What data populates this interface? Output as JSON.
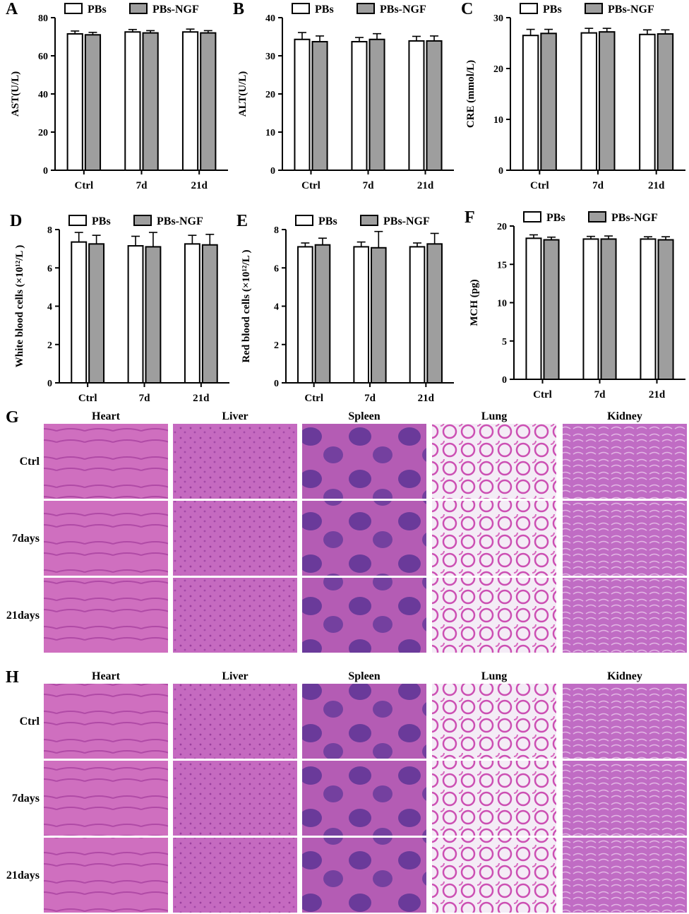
{
  "legend": {
    "series1": "PBs",
    "series2": "PBs-NGF"
  },
  "colors": {
    "series1_fill": "#ffffff",
    "series2_fill": "#9e9e9e",
    "stroke": "#000000"
  },
  "chart_data": [
    {
      "panel": "A",
      "type": "bar",
      "categories": [
        "Ctrl",
        "7d",
        "21d"
      ],
      "ylabel": "AST(U/L)",
      "ylim": [
        0,
        80
      ],
      "yticks": [
        0,
        20,
        40,
        60,
        80
      ],
      "series": [
        {
          "name": "PBs",
          "values": [
            71.5,
            72.5,
            72.5
          ],
          "errors": [
            1.5,
            1.3,
            1.5
          ]
        },
        {
          "name": "PBs-NGF",
          "values": [
            71.0,
            72.0,
            72.0
          ],
          "errors": [
            1.3,
            1.2,
            1.2
          ]
        }
      ]
    },
    {
      "panel": "B",
      "type": "bar",
      "categories": [
        "Ctrl",
        "7d",
        "21d"
      ],
      "ylabel": "ALT(U/L)",
      "ylim": [
        0,
        40
      ],
      "yticks": [
        0,
        10,
        20,
        30,
        40
      ],
      "series": [
        {
          "name": "PBs",
          "values": [
            34.3,
            33.7,
            33.9
          ],
          "errors": [
            1.8,
            1.1,
            1.2
          ]
        },
        {
          "name": "PBs-NGF",
          "values": [
            33.7,
            34.3,
            33.9
          ],
          "errors": [
            1.5,
            1.5,
            1.3
          ]
        }
      ]
    },
    {
      "panel": "C",
      "type": "bar",
      "categories": [
        "Ctrl",
        "7d",
        "21d"
      ],
      "ylabel": "CRE (mmol/L)",
      "ylim": [
        0,
        30
      ],
      "yticks": [
        0,
        10,
        20,
        30
      ],
      "series": [
        {
          "name": "PBs",
          "values": [
            26.5,
            27.0,
            26.7
          ],
          "errors": [
            1.2,
            0.9,
            0.9
          ]
        },
        {
          "name": "PBs-NGF",
          "values": [
            26.9,
            27.2,
            26.8
          ],
          "errors": [
            0.8,
            0.7,
            0.8
          ]
        }
      ]
    },
    {
      "panel": "D",
      "type": "bar",
      "categories": [
        "Ctrl",
        "7d",
        "21d"
      ],
      "ylabel": "White blood cells (×10¹²/L )",
      "ylim": [
        0,
        8
      ],
      "yticks": [
        0,
        2,
        4,
        6,
        8
      ],
      "series": [
        {
          "name": "PBs",
          "values": [
            7.35,
            7.15,
            7.25
          ],
          "errors": [
            0.5,
            0.5,
            0.45
          ]
        },
        {
          "name": "PBs-NGF",
          "values": [
            7.25,
            7.1,
            7.2
          ],
          "errors": [
            0.45,
            0.75,
            0.55
          ]
        }
      ]
    },
    {
      "panel": "E",
      "type": "bar",
      "categories": [
        "Ctrl",
        "7d",
        "21d"
      ],
      "ylabel": "Red blood cells (×10¹²/L )",
      "ylim": [
        0,
        8
      ],
      "yticks": [
        0,
        2,
        4,
        6,
        8
      ],
      "series": [
        {
          "name": "PBs",
          "values": [
            7.1,
            7.1,
            7.1
          ],
          "errors": [
            0.2,
            0.25,
            0.2
          ]
        },
        {
          "name": "PBs-NGF",
          "values": [
            7.2,
            7.05,
            7.25
          ],
          "errors": [
            0.35,
            0.85,
            0.55
          ]
        }
      ]
    },
    {
      "panel": "F",
      "type": "bar",
      "categories": [
        "Ctrl",
        "7d",
        "21d"
      ],
      "ylabel": "MCH (pg)",
      "ylim": [
        0,
        20
      ],
      "yticks": [
        0,
        5,
        10,
        15,
        20
      ],
      "series": [
        {
          "name": "PBs",
          "values": [
            18.4,
            18.3,
            18.3
          ],
          "errors": [
            0.45,
            0.35,
            0.3
          ]
        },
        {
          "name": "PBs-NGF",
          "values": [
            18.2,
            18.3,
            18.2
          ],
          "errors": [
            0.35,
            0.4,
            0.4
          ]
        }
      ]
    }
  ],
  "histology": [
    {
      "panel": "G",
      "tissues": [
        "Heart",
        "Liver",
        "Spleen",
        "Lung",
        "Kidney"
      ],
      "rows": [
        "Ctrl",
        "7days",
        "21days"
      ]
    },
    {
      "panel": "H",
      "tissues": [
        "Heart",
        "Liver",
        "Spleen",
        "Lung",
        "Kidney"
      ],
      "rows": [
        "Ctrl",
        "7days",
        "21days"
      ]
    }
  ]
}
